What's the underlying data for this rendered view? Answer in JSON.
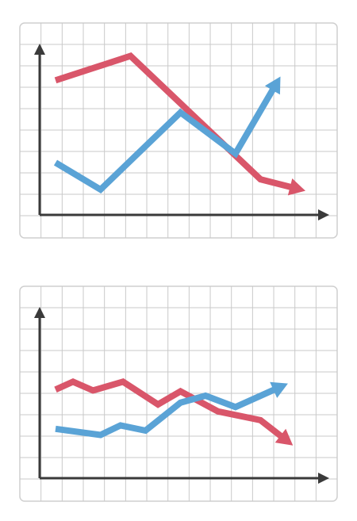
{
  "colors": {
    "background": "#ffffff",
    "card_border": "#cfcfcf",
    "grid": "#c9c9c9",
    "axis": "#3a3a3a",
    "red_series": "#d9566a",
    "blue_series": "#5aa3d6"
  },
  "chart_data": [
    {
      "type": "line",
      "title": "",
      "xlabel": "",
      "ylabel": "",
      "grid": true,
      "legend": "none",
      "axis_arrows": true,
      "xlim": [
        0,
        10
      ],
      "ylim": [
        0,
        10
      ],
      "series": [
        {
          "color": "#d9566a",
          "arrow_end": true,
          "x": [
            0,
            3.0,
            8.2,
            10
          ],
          "y": [
            9.3,
            11.2,
            1.6,
            0.7
          ]
        },
        {
          "color": "#5aa3d6",
          "arrow_end": true,
          "x": [
            0,
            1.8,
            5.0,
            7.2,
            9.0
          ],
          "y": [
            2.9,
            0.8,
            6.8,
            3.6,
            9.6
          ]
        }
      ]
    },
    {
      "type": "line",
      "title": "",
      "xlabel": "",
      "ylabel": "",
      "grid": true,
      "legend": "none",
      "axis_arrows": true,
      "xlim": [
        0,
        10
      ],
      "ylim": [
        0,
        10
      ],
      "series": [
        {
          "color": "#d9566a",
          "arrow_end": true,
          "x": [
            0,
            0.7,
            1.5,
            2.7,
            4.1,
            5.0,
            6.5,
            8.2,
            9.5
          ],
          "y": [
            6.7,
            7.6,
            6.6,
            7.6,
            5.0,
            6.5,
            4.2,
            3.2,
            0.3
          ]
        },
        {
          "color": "#5aa3d6",
          "arrow_end": true,
          "x": [
            0,
            1.8,
            2.6,
            3.6,
            5.0,
            6.0,
            7.2,
            9.3
          ],
          "y": [
            2.2,
            1.5,
            2.6,
            2.0,
            5.2,
            6.0,
            4.7,
            7.4
          ]
        }
      ]
    }
  ]
}
